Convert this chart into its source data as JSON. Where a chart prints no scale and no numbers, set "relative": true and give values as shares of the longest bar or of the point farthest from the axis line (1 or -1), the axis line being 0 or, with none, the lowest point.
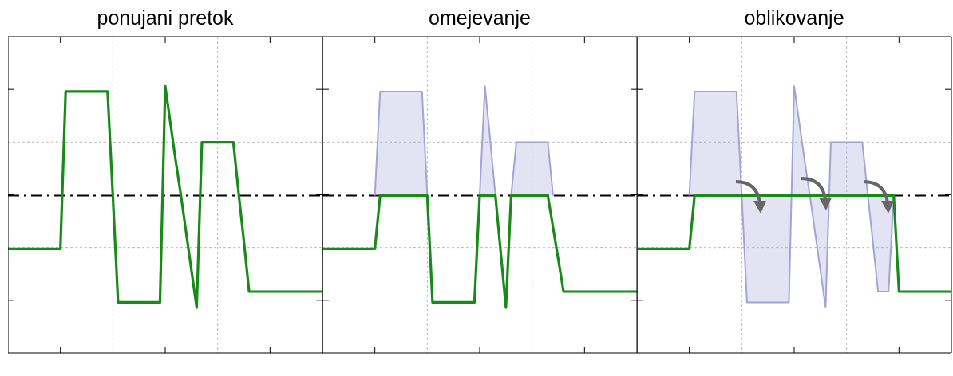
{
  "chart_data": [
    {
      "type": "line",
      "title": "ponujani pretok",
      "relative": true,
      "grid": true,
      "legend": false,
      "ref_lines": [
        {
          "axis": "y",
          "value": 0.59,
          "color": "#000000",
          "line_style": "dashdot"
        }
      ],
      "categories": [
        null,
        null,
        null,
        null,
        null,
        null,
        null,
        null,
        null,
        null,
        null,
        null,
        null,
        null,
        null,
        null,
        null,
        null,
        null,
        null,
        null,
        null,
        null,
        null,
        null,
        null,
        null,
        null,
        null,
        null,
        null,
        null,
        null,
        null,
        null,
        null,
        null,
        null,
        null,
        null,
        null,
        null,
        null,
        null,
        null,
        null,
        null,
        null,
        null,
        null,
        null,
        null,
        null,
        null,
        null,
        null,
        null,
        null,
        null,
        null,
        null
      ],
      "series": [
        {
          "type": "line",
          "color": "#178a17",
          "values": [
            0.39,
            0.39,
            0.39,
            0.39,
            0.39,
            0.39,
            0.39,
            0.39,
            0.39,
            0.39,
            0.39,
            0.98,
            0.98,
            0.98,
            0.98,
            0.98,
            0.98,
            0.98,
            0.98,
            0.98,
            0.59,
            0.19,
            0.19,
            0.19,
            0.19,
            0.19,
            0.19,
            0.19,
            0.19,
            0.19,
            1,
            0.86,
            0.72,
            0.59,
            0.45,
            0.31,
            0.17,
            0.79,
            0.79,
            0.79,
            0.79,
            0.79,
            0.79,
            0.79,
            0.6,
            0.42,
            0.23,
            0.23,
            0.23,
            0.23,
            0.23,
            0.23,
            0.23,
            0.23,
            0.23,
            0.23,
            0.23,
            0.23,
            0.23,
            0.23,
            0.23
          ]
        }
      ]
    },
    {
      "type": "line",
      "title": "omejevanje",
      "relative": true,
      "grid": true,
      "legend": false,
      "ref_lines": [
        {
          "axis": "y",
          "value": 0.59,
          "color": "#000000",
          "line_style": "dashdot"
        }
      ],
      "categories": [
        null,
        null,
        null,
        null,
        null,
        null,
        null,
        null,
        null,
        null,
        null,
        null,
        null,
        null,
        null,
        null,
        null,
        null,
        null,
        null,
        null,
        null,
        null,
        null,
        null,
        null,
        null,
        null,
        null,
        null,
        null,
        null,
        null,
        null,
        null,
        null,
        null,
        null,
        null,
        null,
        null,
        null,
        null,
        null,
        null,
        null,
        null,
        null,
        null,
        null,
        null,
        null,
        null,
        null,
        null,
        null,
        null,
        null,
        null,
        null,
        null
      ],
      "series": [
        {
          "type": "line",
          "color": "#178a17",
          "values": [
            0.39,
            0.39,
            0.39,
            0.39,
            0.39,
            0.39,
            0.39,
            0.39,
            0.39,
            0.39,
            0.39,
            0.59,
            0.59,
            0.59,
            0.59,
            0.59,
            0.59,
            0.59,
            0.59,
            0.59,
            0.59,
            0.19,
            0.19,
            0.19,
            0.19,
            0.19,
            0.19,
            0.19,
            0.19,
            0.19,
            0.59,
            0.59,
            0.59,
            0.59,
            0.38,
            0.17,
            0.59,
            0.59,
            0.59,
            0.59,
            0.59,
            0.59,
            0.59,
            0.59,
            0.47,
            0.35,
            0.23,
            0.23,
            0.23,
            0.23,
            0.23,
            0.23,
            0.23,
            0.23,
            0.23,
            0.23,
            0.23,
            0.23,
            0.23,
            0.23,
            0.23
          ]
        },
        {
          "type": "area",
          "color": "#a3a3d6",
          "values": [
            null,
            null,
            null,
            null,
            null,
            null,
            null,
            null,
            null,
            null,
            0.59,
            0.98,
            0.98,
            0.98,
            0.98,
            0.98,
            0.98,
            0.98,
            0.98,
            0.98,
            0.59,
            null,
            null,
            null,
            null,
            null,
            null,
            null,
            null,
            null,
            0.59,
            1,
            0.8,
            0.59,
            null,
            null,
            0.59,
            0.79,
            0.79,
            0.79,
            0.79,
            0.79,
            0.79,
            0.79,
            0.59,
            null,
            null,
            null,
            null,
            null,
            null,
            null,
            null,
            null,
            null,
            null,
            null,
            null,
            null,
            null,
            null
          ]
        }
      ]
    },
    {
      "type": "line",
      "title": "oblikovanje",
      "relative": true,
      "grid": true,
      "legend": false,
      "ref_lines": [
        {
          "axis": "y",
          "value": 0.59,
          "color": "#000000",
          "line_style": "dashdot"
        }
      ],
      "categories": [
        null,
        null,
        null,
        null,
        null,
        null,
        null,
        null,
        null,
        null,
        null,
        null,
        null,
        null,
        null,
        null,
        null,
        null,
        null,
        null,
        null,
        null,
        null,
        null,
        null,
        null,
        null,
        null,
        null,
        null,
        null,
        null,
        null,
        null,
        null,
        null,
        null,
        null,
        null,
        null,
        null,
        null,
        null,
        null,
        null,
        null,
        null,
        null,
        null,
        null,
        null,
        null,
        null,
        null,
        null,
        null,
        null,
        null,
        null,
        null,
        null
      ],
      "series": [
        {
          "type": "line",
          "color": "#178a17",
          "values": [
            0.39,
            0.39,
            0.39,
            0.39,
            0.39,
            0.39,
            0.39,
            0.39,
            0.39,
            0.39,
            0.39,
            0.59,
            0.59,
            0.59,
            0.59,
            0.59,
            0.59,
            0.59,
            0.59,
            0.59,
            0.59,
            0.59,
            0.59,
            0.59,
            0.59,
            0.59,
            0.59,
            0.59,
            0.59,
            0.59,
            0.59,
            0.59,
            0.59,
            0.59,
            0.59,
            0.59,
            0.59,
            0.59,
            0.59,
            0.59,
            0.59,
            0.59,
            0.59,
            0.59,
            0.59,
            0.59,
            0.59,
            0.59,
            0.59,
            0.59,
            0.23,
            0.23,
            0.23,
            0.23,
            0.23,
            0.23,
            0.23,
            0.23,
            0.23,
            0.23,
            0.23
          ]
        },
        {
          "type": "area",
          "color": "#a3a3d6",
          "values": [
            null,
            null,
            null,
            null,
            null,
            null,
            null,
            null,
            null,
            null,
            0.59,
            0.98,
            0.98,
            0.98,
            0.98,
            0.98,
            0.98,
            0.98,
            0.98,
            0.98,
            0.59,
            0.19,
            0.19,
            0.19,
            0.19,
            0.19,
            0.19,
            0.19,
            0.19,
            0.19,
            1,
            0.86,
            0.72,
            0.59,
            0.45,
            0.31,
            0.17,
            0.79,
            0.79,
            0.79,
            0.79,
            0.79,
            0.79,
            0.79,
            0.6,
            0.42,
            0.23,
            0.23,
            0.23,
            0.59,
            null,
            null,
            null,
            null,
            null,
            null,
            null,
            null,
            null,
            null,
            null
          ]
        }
      ]
    }
  ]
}
